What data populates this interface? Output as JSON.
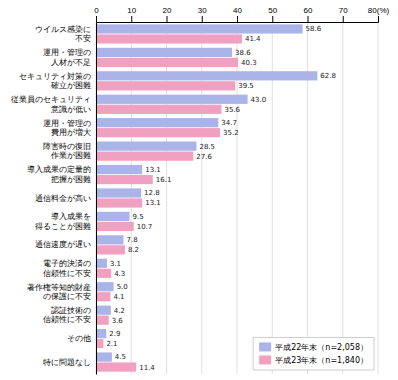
{
  "chart_data": {
    "type": "bar",
    "orientation": "horizontal",
    "categories": [
      "ウイルス感染に\n不安",
      "運用・管理の\n人材が不足",
      "セキュリティ対策の\n確立が困難",
      "従業員のセキュリティ\n意識が低い",
      "運用・管理の\n費用が増大",
      "障害時の復旧\n作業が困難",
      "導入成果の定量的\n把握が困難",
      "通信料金が高い",
      "導入成果を\n得ることが困難",
      "通信速度が遅い",
      "電子的決済の\n信頼性に不安",
      "著作権等知的財産\nの保護に不安",
      "認証技術の\n信頼性に不安",
      "その他",
      "特に問題なし"
    ],
    "series": [
      {
        "name": "平成22年末（n=2,058）",
        "color": "#aab4e8",
        "values": [
          58.6,
          38.6,
          62.8,
          43.0,
          34.7,
          28.5,
          13.1,
          12.8,
          9.5,
          7.8,
          3.1,
          5.0,
          4.2,
          2.9,
          4.5
        ]
      },
      {
        "name": "平成23年末（n=1,840）",
        "color": "#f0a0c0",
        "values": [
          41.4,
          40.3,
          39.5,
          35.6,
          35.2,
          27.6,
          16.1,
          13.1,
          10.7,
          8.2,
          4.3,
          4.1,
          3.6,
          2.1,
          11.4
        ]
      }
    ],
    "xlim": [
      0,
      80
    ],
    "xticks": [
      0,
      10,
      20,
      30,
      40,
      50,
      60,
      70,
      {
        "value": 80,
        "label": "80(%)"
      }
    ],
    "grid": true,
    "data_labels": true,
    "legend": "lower right"
  }
}
